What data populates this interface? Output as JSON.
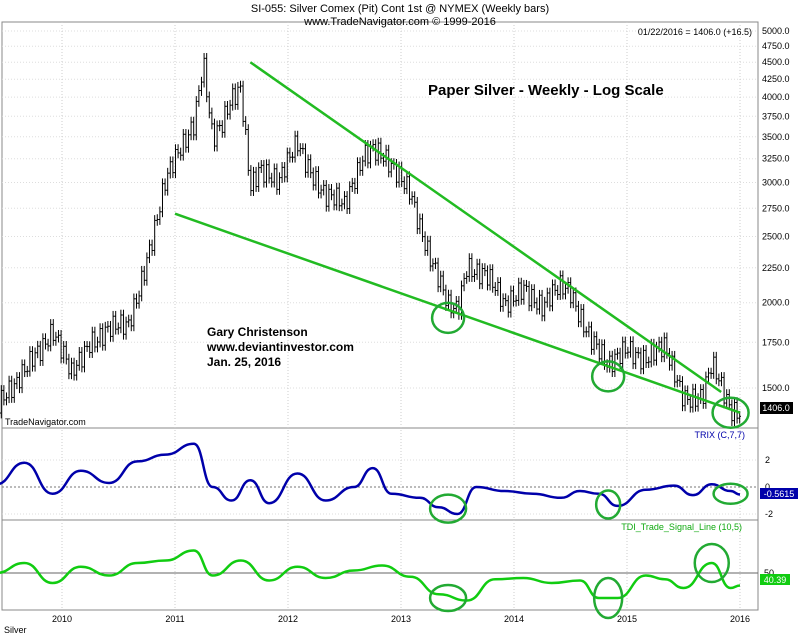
{
  "header": {
    "line1": "SI-055:  Silver Comex (Pit) Cont 1st @ NYMEX  (Weekly bars)",
    "line2": "www.TradeNavigator.com © 1999-2016",
    "info": "01/22/2016 = 1406.0 (+16.5)"
  },
  "annotations": {
    "title": "Paper Silver - Weekly - Log Scale",
    "author": "Gary Christenson",
    "website": "www.deviantinvestor.com",
    "date": "Jan. 25, 2016",
    "watermark": "TradeNavigator.com",
    "symbol_label": "Silver"
  },
  "colors": {
    "price_bars": "#000000",
    "trendline": "#22bb22",
    "trix": "#0000aa",
    "tdi": "#11cc11",
    "circle": "#22aa33",
    "last_price_bg": "#000000",
    "trix_badge": "#0000aa",
    "tdi_badge": "#11cc11"
  },
  "chart_data": [
    {
      "type": "ohlc",
      "name": "price",
      "scale": "log",
      "ylim": [
        1350,
        5000
      ],
      "x_ticks": [
        "2010",
        "2011",
        "2012",
        "2013",
        "2014",
        "2015",
        "2016"
      ],
      "y_ticks": [
        "5000.0",
        "4750.0",
        "4500.0",
        "4250.0",
        "4000.0",
        "3750.0",
        "3500.0",
        "3250.0",
        "3000.0",
        "2750.0",
        "2500.0",
        "2250.0",
        "2000.0",
        "1750.0",
        "1500.0"
      ],
      "last_value": "1406.0",
      "points": [
        {
          "date": "2009-06",
          "value": 1420
        },
        {
          "date": "2009-08",
          "value": 1480
        },
        {
          "date": "2009-10",
          "value": 1700
        },
        {
          "date": "2009-12",
          "value": 1820
        },
        {
          "date": "2010-02",
          "value": 1550
        },
        {
          "date": "2010-04",
          "value": 1780
        },
        {
          "date": "2010-06",
          "value": 1830
        },
        {
          "date": "2010-08",
          "value": 1820
        },
        {
          "date": "2010-09",
          "value": 2050
        },
        {
          "date": "2010-10",
          "value": 2350
        },
        {
          "date": "2010-11",
          "value": 2650
        },
        {
          "date": "2010-12",
          "value": 3000
        },
        {
          "date": "2011-02",
          "value": 3400
        },
        {
          "date": "2011-03",
          "value": 3700
        },
        {
          "date": "2011-04",
          "value": 4600
        },
        {
          "date": "2011-05",
          "value": 3500
        },
        {
          "date": "2011-06",
          "value": 3600
        },
        {
          "date": "2011-07",
          "value": 3900
        },
        {
          "date": "2011-08",
          "value": 4100
        },
        {
          "date": "2011-09",
          "value": 3000
        },
        {
          "date": "2011-10",
          "value": 3200
        },
        {
          "date": "2011-12",
          "value": 2950
        },
        {
          "date": "2012-02",
          "value": 3450
        },
        {
          "date": "2012-03",
          "value": 3250
        },
        {
          "date": "2012-05",
          "value": 2850
        },
        {
          "date": "2012-07",
          "value": 2750
        },
        {
          "date": "2012-09",
          "value": 3350
        },
        {
          "date": "2012-10",
          "value": 3400
        },
        {
          "date": "2012-12",
          "value": 3100
        },
        {
          "date": "2013-02",
          "value": 2950
        },
        {
          "date": "2013-04",
          "value": 2350
        },
        {
          "date": "2013-06",
          "value": 1950
        },
        {
          "date": "2013-07",
          "value": 1950
        },
        {
          "date": "2013-08",
          "value": 2300
        },
        {
          "date": "2013-10",
          "value": 2200
        },
        {
          "date": "2013-12",
          "value": 1950
        },
        {
          "date": "2014-02",
          "value": 2150
        },
        {
          "date": "2014-04",
          "value": 1950
        },
        {
          "date": "2014-06",
          "value": 2100
        },
        {
          "date": "2014-07",
          "value": 2100
        },
        {
          "date": "2014-09",
          "value": 1800
        },
        {
          "date": "2014-11",
          "value": 1580
        },
        {
          "date": "2015-01",
          "value": 1750
        },
        {
          "date": "2015-03",
          "value": 1650
        },
        {
          "date": "2015-05",
          "value": 1700
        },
        {
          "date": "2015-07",
          "value": 1480
        },
        {
          "date": "2015-09",
          "value": 1450
        },
        {
          "date": "2015-10",
          "value": 1600
        },
        {
          "date": "2015-12",
          "value": 1400
        },
        {
          "date": "2016-01",
          "value": 1406
        }
      ],
      "trendlines": [
        {
          "from": {
            "date": "2011-09",
            "value": 4500
          },
          "to": {
            "date": "2015-11",
            "value": 1480
          }
        },
        {
          "from": {
            "date": "2011-01",
            "value": 2700
          },
          "to": {
            "date": "2016-01",
            "value": 1380
          }
        }
      ]
    },
    {
      "type": "line",
      "name": "TRIX (C,7,7)",
      "y_ticks": [
        "2",
        "0",
        "-2"
      ],
      "ylim": [
        -3,
        4
      ],
      "last_value": "-0.5615",
      "x": [
        "2009-06",
        "2009-09",
        "2009-12",
        "2010-03",
        "2010-06",
        "2010-09",
        "2010-12",
        "2011-03",
        "2011-05",
        "2011-07",
        "2011-09",
        "2011-11",
        "2012-02",
        "2012-05",
        "2012-08",
        "2012-10",
        "2012-12",
        "2013-03",
        "2013-05",
        "2013-07",
        "2013-09",
        "2013-12",
        "2014-03",
        "2014-06",
        "2014-08",
        "2014-10",
        "2014-12",
        "2015-03",
        "2015-06",
        "2015-08",
        "2015-10",
        "2015-12",
        "2016-01"
      ],
      "y": [
        0.2,
        1.8,
        -0.5,
        1.2,
        0.3,
        1.9,
        2.4,
        3.2,
        0.0,
        -1.0,
        0.5,
        -1.2,
        1.0,
        -1.0,
        0.0,
        1.4,
        -0.5,
        -0.8,
        -1.5,
        -2.0,
        0.0,
        -0.3,
        -0.5,
        -0.8,
        -0.3,
        -0.5,
        -1.4,
        -0.2,
        0.1,
        -0.6,
        0.2,
        -0.3,
        -0.56
      ]
    },
    {
      "type": "line",
      "name": "TDI_Trade_Signal_Line (10,5)",
      "y_ticks": [
        "50"
      ],
      "ylim": [
        20,
        80
      ],
      "last_value": "40.39",
      "x": [
        "2009-06",
        "2009-09",
        "2009-12",
        "2010-03",
        "2010-06",
        "2010-09",
        "2010-12",
        "2011-03",
        "2011-05",
        "2011-08",
        "2011-11",
        "2012-02",
        "2012-05",
        "2012-08",
        "2012-11",
        "2013-02",
        "2013-05",
        "2013-08",
        "2013-11",
        "2014-02",
        "2014-05",
        "2014-08",
        "2014-10",
        "2014-12",
        "2015-03",
        "2015-05",
        "2015-07",
        "2015-10",
        "2015-12",
        "2016-01"
      ],
      "y": [
        50,
        58,
        42,
        55,
        48,
        58,
        60,
        68,
        48,
        60,
        44,
        55,
        46,
        52,
        56,
        47,
        33,
        28,
        45,
        46,
        42,
        44,
        30,
        30,
        48,
        45,
        38,
        58,
        38,
        40
      ]
    }
  ]
}
